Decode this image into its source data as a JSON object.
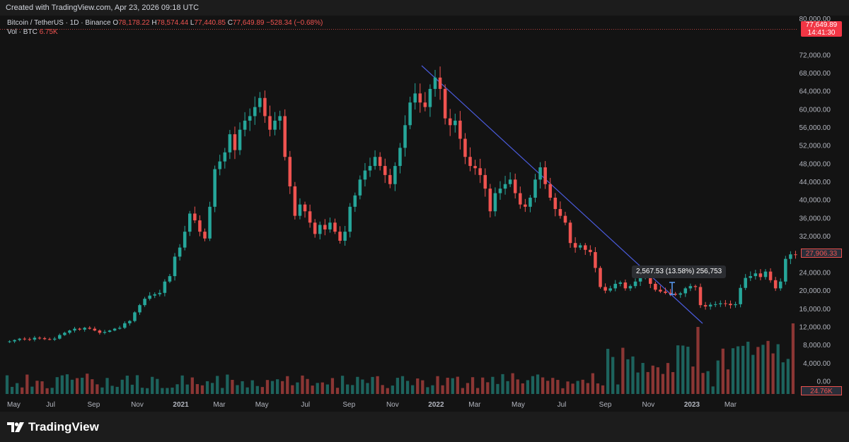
{
  "header": {
    "created": "Created with TradingView.com, Apr 23, 2026 09:18 UTC"
  },
  "legend": {
    "symbol": "Bitcoin / TetherUS · 1D · Binance",
    "o_label": "O",
    "o_value": "78,178.22",
    "h_label": "H",
    "h_value": "78,574.44",
    "l_label": "L",
    "l_value": "77,440.85",
    "c_label": "C",
    "c_value": "77,649.89",
    "change": "−528.34 (−0.68%)",
    "vol_label": "Vol · BTC",
    "vol_value": "6.75K"
  },
  "badges": {
    "last_price": "77,649.89",
    "countdown": "14:41:30",
    "current_marker": "27,906.33",
    "volume_marker": "24.76K"
  },
  "measure_label": "2,567.53 (13.58%) 256,753",
  "footer": {
    "brand": "TradingView"
  },
  "colors": {
    "up": "#26a69a",
    "down": "#ef5350",
    "trend": "#4a5bdc",
    "bg": "#131313"
  },
  "chart_data": {
    "type": "candlestick",
    "price_axis_ticks": [
      "80,000.00",
      "72,000.00",
      "68,000.00",
      "64,000.00",
      "60,000.00",
      "56,000.00",
      "52,000.00",
      "48,000.00",
      "44,000.00",
      "40,000.00",
      "36,000.00",
      "32,000.00",
      "24,000.00",
      "20,000.00",
      "16,000.00",
      "12,000.00",
      "8,000.00",
      "4,000.00",
      "0.00"
    ],
    "price_axis_values": [
      80000,
      72000,
      68000,
      64000,
      60000,
      56000,
      52000,
      48000,
      44000,
      40000,
      36000,
      32000,
      24000,
      20000,
      16000,
      12000,
      8000,
      4000,
      0
    ],
    "time_axis": [
      {
        "label": "May",
        "i": 0
      },
      {
        "label": "Jul",
        "i": 8.7
      },
      {
        "label": "Sep",
        "i": 17.3
      },
      {
        "label": "Nov",
        "i": 26.0
      },
      {
        "label": "2021",
        "i": 34.7
      },
      {
        "label": "Mar",
        "i": 42.4
      },
      {
        "label": "May",
        "i": 50.9
      },
      {
        "label": "Jul",
        "i": 59.6
      },
      {
        "label": "Sep",
        "i": 68.3
      },
      {
        "label": "Nov",
        "i": 77.0
      },
      {
        "label": "2022",
        "i": 85.7
      },
      {
        "label": "Mar",
        "i": 93.4
      },
      {
        "label": "May",
        "i": 102.1
      },
      {
        "label": "Jul",
        "i": 110.8
      },
      {
        "label": "Sep",
        "i": 119.5
      },
      {
        "label": "Nov",
        "i": 128.1
      },
      {
        "label": "2023",
        "i": 136.8
      },
      {
        "label": "Mar",
        "i": 144.5
      }
    ],
    "closes": [
      8800,
      9100,
      9400,
      9300,
      9200,
      9600,
      9500,
      9300,
      9200,
      9400,
      10200,
      10700,
      11200,
      11600,
      11400,
      11800,
      11600,
      11200,
      10700,
      10900,
      11200,
      11600,
      11800,
      12800,
      13300,
      15200,
      16800,
      18200,
      18900,
      19200,
      19500,
      22000,
      23200,
      27500,
      29500,
      33000,
      37000,
      35500,
      33000,
      31500,
      38500,
      46800,
      48500,
      50500,
      54500,
      51000,
      55500,
      57500,
      58500,
      60500,
      62500,
      58500,
      55500,
      57500,
      58500,
      49500,
      43000,
      36500,
      39000,
      37500,
      35000,
      32500,
      34500,
      33500,
      35000,
      33000,
      31000,
      33000,
      38500,
      41000,
      44500,
      46500,
      47500,
      49500,
      47500,
      45500,
      43500,
      47500,
      51500,
      56500,
      61500,
      63500,
      61500,
      60500,
      64500,
      67000,
      64500,
      58000,
      56500,
      57500,
      53500,
      49500,
      47500,
      47000,
      45500,
      42500,
      37500,
      41500,
      42500,
      43500,
      44500,
      41500,
      39000,
      38500,
      40500,
      44500,
      47200,
      43500,
      40500,
      38000,
      36500,
      35000,
      30500,
      29500,
      30000,
      29000,
      28500,
      25000,
      20800,
      20000,
      20500,
      21500,
      21800,
      20500,
      21000,
      22000,
      23500,
      23800,
      21500,
      20200,
      19800,
      19500,
      19300,
      19100,
      19400,
      20500,
      21000,
      20800,
      16800,
      16500,
      16900,
      17000,
      17200,
      17100,
      16800,
      17000,
      20600,
      22800,
      23200,
      23800,
      23000,
      24200,
      22300,
      20500,
      22000,
      27000,
      28000,
      27900
    ],
    "volume_note": "Volume histogram bars below price, in BTC"
  }
}
